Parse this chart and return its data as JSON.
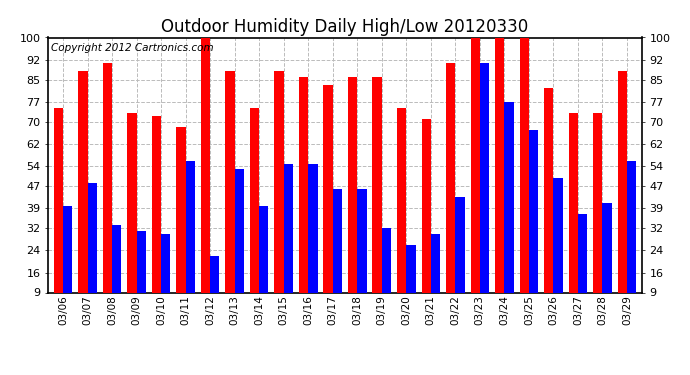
{
  "title": "Outdoor Humidity Daily High/Low 20120330",
  "copyright": "Copyright 2012 Cartronics.com",
  "dates": [
    "03/06",
    "03/07",
    "03/08",
    "03/09",
    "03/10",
    "03/11",
    "03/12",
    "03/13",
    "03/14",
    "03/15",
    "03/16",
    "03/17",
    "03/18",
    "03/19",
    "03/20",
    "03/21",
    "03/22",
    "03/23",
    "03/24",
    "03/25",
    "03/26",
    "03/27",
    "03/28",
    "03/29"
  ],
  "high_values": [
    75,
    88,
    91,
    73,
    72,
    68,
    100,
    88,
    75,
    88,
    86,
    83,
    86,
    86,
    75,
    71,
    91,
    100,
    100,
    100,
    82,
    73,
    73,
    88
  ],
  "low_values": [
    40,
    48,
    33,
    31,
    30,
    56,
    22,
    53,
    40,
    55,
    55,
    46,
    46,
    32,
    26,
    30,
    43,
    91,
    77,
    67,
    50,
    37,
    41,
    56
  ],
  "high_color": "#ff0000",
  "low_color": "#0000ff",
  "bg_color": "#ffffff",
  "grid_color": "#bbbbbb",
  "yticks": [
    9,
    16,
    24,
    32,
    39,
    47,
    54,
    62,
    70,
    77,
    85,
    92,
    100
  ],
  "ymin": 9,
  "ymax": 100,
  "title_fontsize": 12,
  "copyright_fontsize": 7.5,
  "bar_width": 0.38
}
